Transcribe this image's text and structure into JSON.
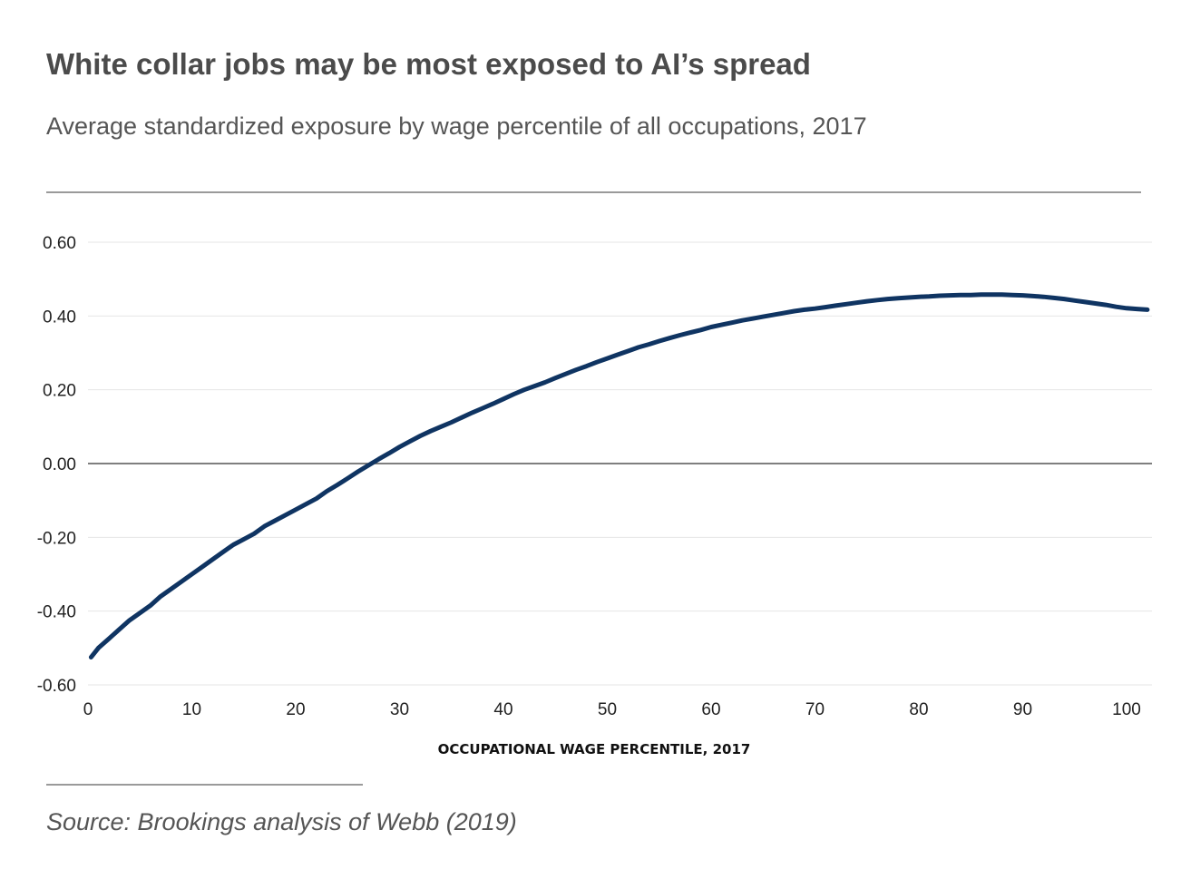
{
  "header": {
    "title": "White collar jobs may be most exposed to AI’s spread",
    "subtitle": "Average standardized exposure by wage percentile of all occupations, 2017"
  },
  "footer": {
    "source": "Source: Brookings analysis of Webb (2019)"
  },
  "colors": {
    "line": "#0f3462",
    "grid": "#e6e6e6",
    "zero_line": "#555555",
    "title": "#4b4b4b"
  },
  "chart_data": {
    "type": "line",
    "title": "White collar jobs may be most exposed to AI’s spread",
    "subtitle": "Average standardized exposure by wage percentile of all occupations, 2017",
    "xlabel": "OCCUPATIONAL WAGE PERCENTILE, 2017",
    "ylabel": "",
    "xlim": [
      0,
      102
    ],
    "ylim": [
      -0.6,
      0.6
    ],
    "x_ticks": [
      0,
      10,
      20,
      30,
      40,
      50,
      60,
      70,
      80,
      90,
      100
    ],
    "x_tick_labels": [
      "0",
      "10",
      "20",
      "30",
      "40",
      "50",
      "60",
      "70",
      "80",
      "90",
      "100"
    ],
    "y_ticks": [
      0.6,
      0.4,
      0.2,
      0.0,
      -0.2,
      -0.4,
      -0.6
    ],
    "y_tick_labels": [
      "0.60",
      "0.40",
      "0.20",
      "0.00",
      "-0.20",
      "-0.40",
      "-0.60"
    ],
    "grid": true,
    "series": [
      {
        "name": "",
        "x": [
          0.3,
          1,
          2,
          3,
          4,
          5,
          6,
          7,
          8,
          9,
          10,
          11,
          12,
          13,
          14,
          15,
          16,
          17,
          18,
          19,
          20,
          21,
          22,
          23,
          24,
          25,
          26,
          27,
          28,
          29,
          30,
          31,
          32,
          33,
          34,
          35,
          36,
          37,
          38,
          39,
          40,
          41,
          42,
          43,
          44,
          45,
          46,
          47,
          48,
          49,
          50,
          51,
          52,
          53,
          54,
          55,
          56,
          57,
          58,
          59,
          60,
          61,
          62,
          63,
          64,
          65,
          66,
          67,
          68,
          69,
          70,
          71,
          72,
          73,
          74,
          75,
          76,
          77,
          78,
          79,
          80,
          81,
          82,
          83,
          84,
          85,
          86,
          87,
          88,
          89,
          90,
          91,
          92,
          93,
          94,
          95,
          96,
          97,
          98,
          99,
          100,
          101,
          102
        ],
        "values": [
          -0.525,
          -0.5,
          -0.475,
          -0.45,
          -0.425,
          -0.405,
          -0.385,
          -0.36,
          -0.34,
          -0.32,
          -0.3,
          -0.28,
          -0.26,
          -0.24,
          -0.22,
          -0.205,
          -0.19,
          -0.17,
          -0.155,
          -0.14,
          -0.125,
          -0.11,
          -0.095,
          -0.075,
          -0.058,
          -0.04,
          -0.022,
          -0.005,
          0.012,
          0.028,
          0.045,
          0.06,
          0.075,
          0.088,
          0.1,
          0.112,
          0.125,
          0.138,
          0.15,
          0.162,
          0.175,
          0.188,
          0.2,
          0.21,
          0.22,
          0.232,
          0.243,
          0.254,
          0.264,
          0.275,
          0.285,
          0.295,
          0.305,
          0.315,
          0.323,
          0.332,
          0.34,
          0.348,
          0.355,
          0.362,
          0.37,
          0.376,
          0.382,
          0.388,
          0.393,
          0.398,
          0.403,
          0.408,
          0.413,
          0.417,
          0.42,
          0.424,
          0.428,
          0.432,
          0.436,
          0.44,
          0.443,
          0.446,
          0.448,
          0.45,
          0.452,
          0.453,
          0.455,
          0.456,
          0.457,
          0.457,
          0.458,
          0.458,
          0.458,
          0.457,
          0.456,
          0.454,
          0.452,
          0.449,
          0.446,
          0.442,
          0.438,
          0.434,
          0.43,
          0.425,
          0.421,
          0.419,
          0.417
        ]
      }
    ]
  }
}
